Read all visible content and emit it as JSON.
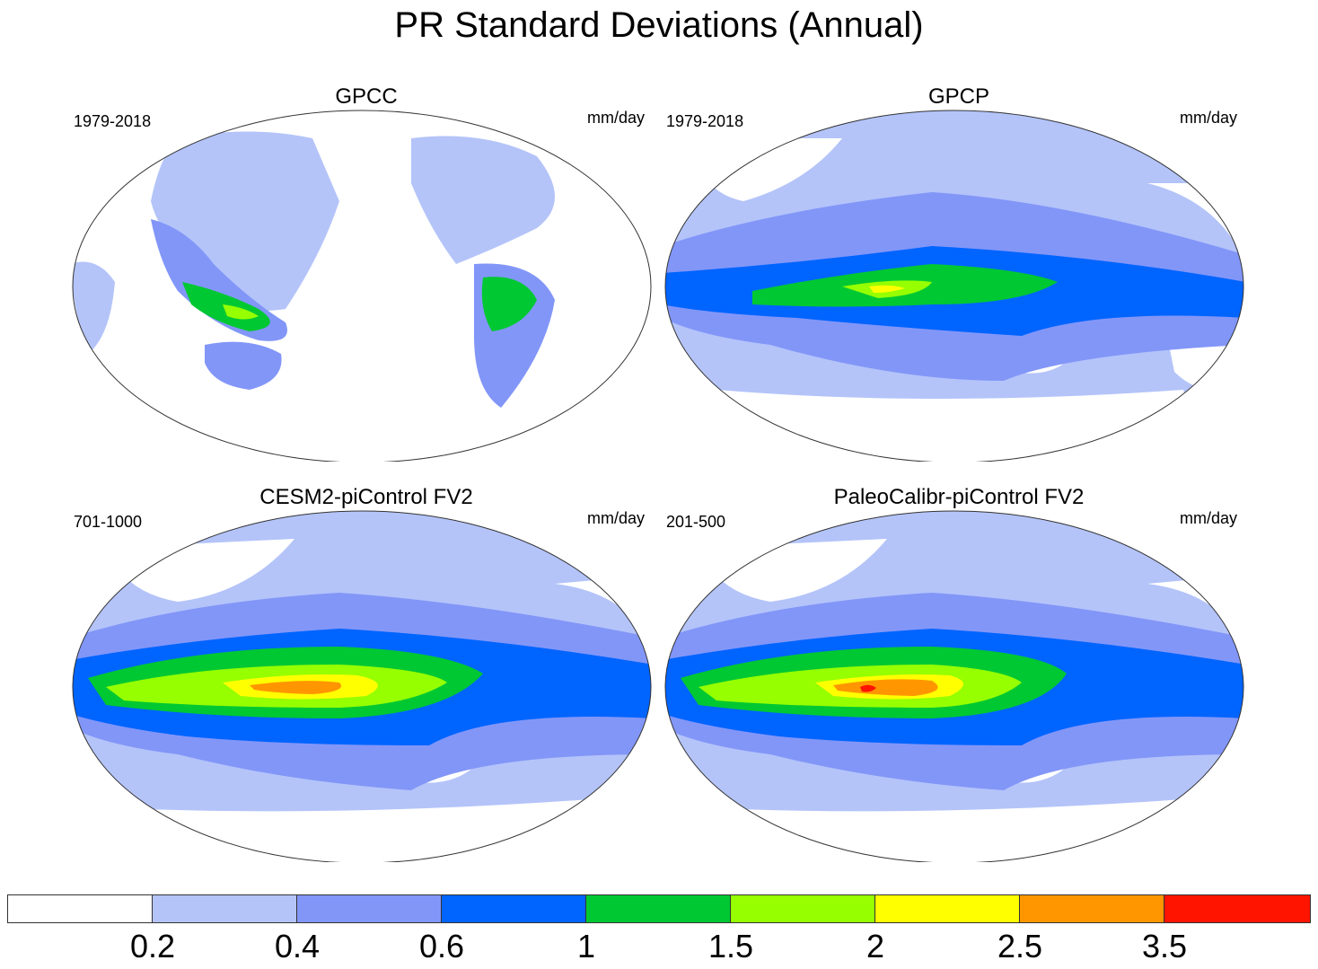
{
  "title": "PR Standard Deviations (Annual)",
  "panels": [
    {
      "title": "GPCC",
      "period": "1979-2018",
      "units": "mm/day",
      "pattern": "obs_land"
    },
    {
      "title": "GPCP",
      "period": "1979-2018",
      "units": "mm/day",
      "pattern": "obs_full"
    },
    {
      "title": "CESM2-piControl FV2",
      "period": "701-1000",
      "units": "mm/day",
      "pattern": "model_a"
    },
    {
      "title": "PaleoCalibr-piControl FV2",
      "period": "201-500",
      "units": "mm/day",
      "pattern": "model_b"
    }
  ],
  "colorbar": {
    "colors": [
      "#ffffff",
      "#b4c4f9",
      "#8296f8",
      "#0064ff",
      "#00c832",
      "#96ff00",
      "#ffff00",
      "#ff9600",
      "#ff1400"
    ],
    "labels": [
      "0.2",
      "0.4",
      "0.6",
      "1",
      "1.5",
      "2",
      "2.5",
      "3.5"
    ]
  }
}
